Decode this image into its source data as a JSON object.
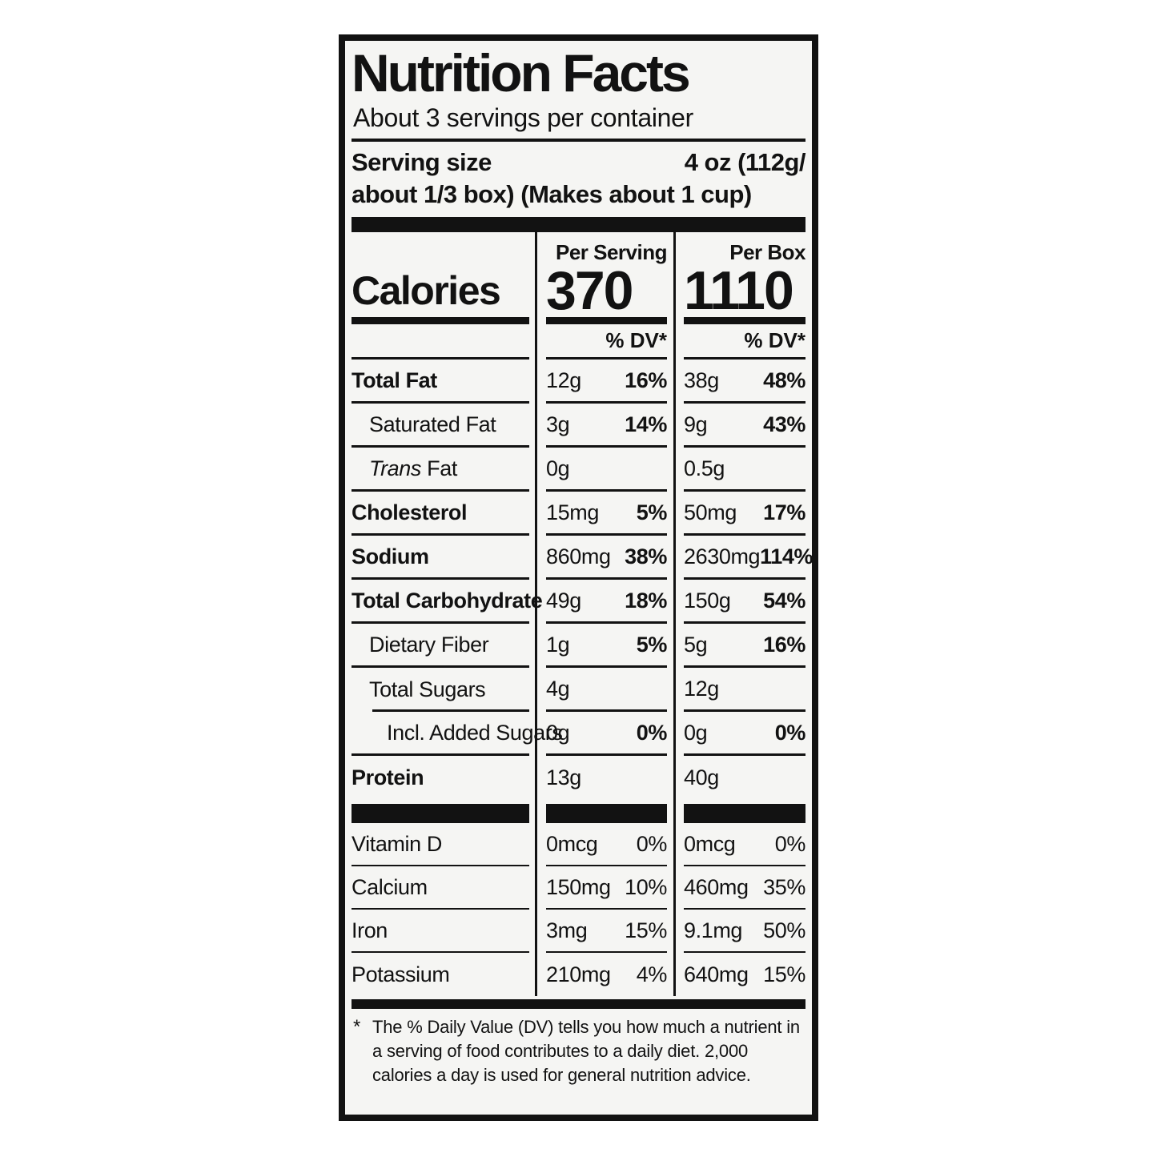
{
  "nutrition_label": {
    "title": "Nutrition Facts",
    "servings_per_container": "About 3 servings per container",
    "serving_size": {
      "label": "Serving size",
      "value_line1": "4 oz (112g/",
      "value_line2": "about 1/3 box) (Makes about 1 cup)"
    },
    "calories": {
      "label": "Calories",
      "per_serving": {
        "header": "Per Serving",
        "value": "370",
        "dv_header": "% DV*"
      },
      "per_box": {
        "header": "Per Box",
        "value": "1110",
        "dv_header": "% DV*"
      }
    },
    "nutrients": [
      {
        "name": "Total Fat",
        "bold": true,
        "indent": 0,
        "per_serving": {
          "amount": "12g",
          "dv": "16%"
        },
        "per_box": {
          "amount": "38g",
          "dv": "48%"
        }
      },
      {
        "name": "Saturated Fat",
        "bold": false,
        "indent": 1,
        "per_serving": {
          "amount": "3g",
          "dv": "14%"
        },
        "per_box": {
          "amount": "9g",
          "dv": "43%"
        }
      },
      {
        "name_italic": "Trans",
        "name": " Fat",
        "bold": false,
        "indent": 1,
        "per_serving": {
          "amount": "0g",
          "dv": ""
        },
        "per_box": {
          "amount": "0.5g",
          "dv": ""
        }
      },
      {
        "name": "Cholesterol",
        "bold": true,
        "indent": 0,
        "per_serving": {
          "amount": "15mg",
          "dv": "5%"
        },
        "per_box": {
          "amount": "50mg",
          "dv": "17%"
        }
      },
      {
        "name": "Sodium",
        "bold": true,
        "indent": 0,
        "per_serving": {
          "amount": "860mg",
          "dv": "38%"
        },
        "per_box": {
          "amount": "2630mg",
          "dv": "114%"
        }
      },
      {
        "name": "Total Carbohydrate",
        "bold": true,
        "indent": 0,
        "per_serving": {
          "amount": "49g",
          "dv": "18%"
        },
        "per_box": {
          "amount": "150g",
          "dv": "54%"
        }
      },
      {
        "name": "Dietary Fiber",
        "bold": false,
        "indent": 1,
        "per_serving": {
          "amount": "1g",
          "dv": "5%"
        },
        "per_box": {
          "amount": "5g",
          "dv": "16%"
        }
      },
      {
        "name": "Total Sugars",
        "bold": false,
        "indent": 1,
        "rule_below_indented": true,
        "per_serving": {
          "amount": "4g",
          "dv": ""
        },
        "per_box": {
          "amount": "12g",
          "dv": ""
        }
      },
      {
        "name": "Incl. Added Sugars",
        "bold": false,
        "indent": 2,
        "per_serving": {
          "amount": "0g",
          "dv": "0%"
        },
        "per_box": {
          "amount": "0g",
          "dv": "0%"
        }
      },
      {
        "name": "Protein",
        "bold": true,
        "indent": 0,
        "no_rule_below": true,
        "per_serving": {
          "amount": "13g",
          "dv": ""
        },
        "per_box": {
          "amount": "40g",
          "dv": ""
        }
      }
    ],
    "micronutrients": [
      {
        "name": "Vitamin D",
        "per_serving": {
          "amount": "0mcg",
          "dv": "0%"
        },
        "per_box": {
          "amount": "0mcg",
          "dv": "0%"
        }
      },
      {
        "name": "Calcium",
        "per_serving": {
          "amount": "150mg",
          "dv": "10%"
        },
        "per_box": {
          "amount": "460mg",
          "dv": "35%"
        }
      },
      {
        "name": "Iron",
        "per_serving": {
          "amount": "3mg",
          "dv": "15%"
        },
        "per_box": {
          "amount": "9.1mg",
          "dv": "50%"
        }
      },
      {
        "name": "Potassium",
        "no_rule_below": true,
        "per_serving": {
          "amount": "210mg",
          "dv": "4%"
        },
        "per_box": {
          "amount": "640mg",
          "dv": "15%"
        }
      }
    ],
    "footnote": {
      "marker": "*",
      "text": "The % Daily Value (DV) tells you how much a nutrient in a serving of food contributes to a daily diet. 2,000 calories a day is used for general nutrition advice."
    },
    "colors": {
      "ink": "#121212",
      "paper": "#f5f5f3",
      "page_background": "#ffffff"
    }
  }
}
